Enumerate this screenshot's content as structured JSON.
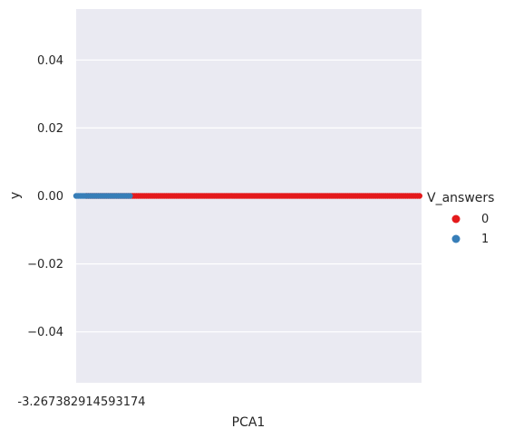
{
  "chart_data": {
    "type": "scatter",
    "xlabel": "PCA1",
    "ylabel": "y",
    "ylim": [
      -0.055,
      0.055
    ],
    "yticks": [
      0.04,
      0.02,
      0.0,
      -0.02,
      -0.04
    ],
    "ytick_labels": [
      "0.04",
      "0.02",
      "0.00",
      "−0.02",
      "−0.04"
    ],
    "xtick_labels_overlapping": "-3.267382914593174",
    "grid": true,
    "background": "#eaeaf2",
    "legend": {
      "title": "V_answers",
      "placement": "right",
      "entries": [
        {
          "label": "0",
          "color": "#e41a1c"
        },
        {
          "label": "1",
          "color": "#377eb8"
        }
      ]
    },
    "series": [
      {
        "name": "0",
        "color": "#e41a1c",
        "y": 0.0,
        "x_extent": [
          0.03,
          1.0
        ]
      },
      {
        "name": "1",
        "color": "#377eb8",
        "y": 0.0,
        "x_extent": [
          0.0,
          0.16
        ]
      }
    ]
  }
}
